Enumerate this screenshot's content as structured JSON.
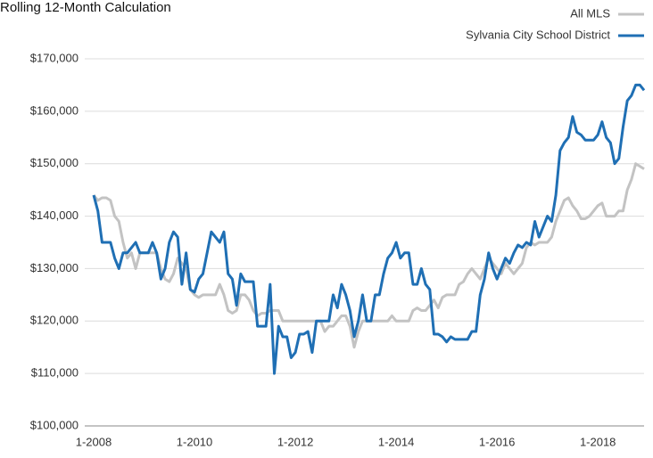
{
  "chart_data": {
    "type": "line",
    "title": "Rolling 12-Month Calculation",
    "categories": [
      "1-2008",
      null,
      null,
      null,
      null,
      null,
      null,
      null,
      null,
      null,
      null,
      null,
      null,
      null,
      null,
      null,
      null,
      null,
      null,
      null,
      null,
      null,
      null,
      null,
      "1-2010",
      null,
      null,
      null,
      null,
      null,
      null,
      null,
      null,
      null,
      null,
      null,
      null,
      null,
      null,
      null,
      null,
      null,
      null,
      null,
      null,
      null,
      null,
      null,
      "1-2012",
      null,
      null,
      null,
      null,
      null,
      null,
      null,
      null,
      null,
      null,
      null,
      null,
      null,
      null,
      null,
      null,
      null,
      null,
      null,
      null,
      null,
      null,
      null,
      "1-2014",
      null,
      null,
      null,
      null,
      null,
      null,
      null,
      null,
      null,
      null,
      null,
      null,
      null,
      null,
      null,
      null,
      null,
      null,
      null,
      null,
      null,
      null,
      null,
      "1-2016",
      null,
      null,
      null,
      null,
      null,
      null,
      null,
      null,
      null,
      null,
      null,
      null,
      null,
      null,
      null,
      null,
      null,
      null,
      null,
      null,
      null,
      null,
      null,
      "1-2018",
      null,
      null,
      null,
      null,
      null,
      null,
      null,
      null,
      null,
      null,
      null
    ],
    "series": [
      {
        "name": "All MLS",
        "color": "#c3c3c3",
        "values": [
          144000,
          143000,
          143500,
          143500,
          143000,
          140000,
          139000,
          135000,
          132000,
          133000,
          130000,
          133000,
          133000,
          133000,
          133000,
          133000,
          130000,
          128000,
          127500,
          129000,
          132000,
          131000,
          130000,
          126000,
          125000,
          124500,
          125000,
          125000,
          125000,
          125000,
          127000,
          125000,
          122000,
          121500,
          122000,
          125000,
          125000,
          124000,
          122000,
          121000,
          121500,
          121500,
          122000,
          122000,
          122000,
          120000,
          120000,
          120000,
          120000,
          120000,
          120000,
          120000,
          120000,
          120000,
          120000,
          118000,
          119000,
          119000,
          120000,
          121000,
          121000,
          119000,
          115000,
          118000,
          120000,
          120000,
          120000,
          120000,
          120000,
          120000,
          120000,
          121000,
          120000,
          120000,
          120000,
          120000,
          122000,
          122500,
          122000,
          122000,
          123000,
          124000,
          122500,
          124500,
          125000,
          125000,
          125000,
          127000,
          127500,
          129000,
          130000,
          129000,
          128000,
          130000,
          132000,
          131000,
          130000,
          129000,
          131000,
          130000,
          129000,
          130000,
          131000,
          134000,
          135000,
          134500,
          135000,
          135000,
          135000,
          136000,
          139000,
          141000,
          143000,
          143500,
          142000,
          141000,
          139500,
          139500,
          140000,
          141000,
          142000,
          142500,
          140000,
          140000,
          140000,
          141000,
          141000,
          145000,
          147000,
          150000,
          149500,
          149000
        ]
      },
      {
        "name": "Sylvania City School District",
        "color": "#1f6fb4",
        "values": [
          144000,
          141000,
          135000,
          135000,
          135000,
          132000,
          130000,
          133000,
          133000,
          134000,
          135000,
          133000,
          133000,
          133000,
          135000,
          133000,
          128000,
          130000,
          135000,
          137000,
          136000,
          127000,
          133000,
          126000,
          125500,
          128000,
          129000,
          133000,
          137000,
          136000,
          135000,
          137000,
          129000,
          128000,
          123000,
          129000,
          127500,
          127500,
          127500,
          119000,
          119000,
          119000,
          127000,
          110000,
          119000,
          117000,
          117000,
          113000,
          114000,
          117500,
          117500,
          118000,
          114000,
          120000,
          120000,
          120000,
          120000,
          125000,
          122500,
          127000,
          125000,
          122000,
          117000,
          120000,
          125000,
          120000,
          120000,
          125000,
          125000,
          129000,
          132000,
          133000,
          135000,
          132000,
          133000,
          133000,
          127000,
          127000,
          130000,
          127000,
          126000,
          117500,
          117500,
          117000,
          116000,
          117000,
          116500,
          116500,
          116500,
          116500,
          118000,
          118000,
          125000,
          128000,
          133000,
          130000,
          128000,
          130000,
          132000,
          131000,
          133000,
          134500,
          134000,
          135000,
          134500,
          139000,
          136000,
          138000,
          140000,
          139000,
          144000,
          152500,
          154000,
          155000,
          159000,
          156000,
          155500,
          154500,
          154500,
          154500,
          155500,
          158000,
          155000,
          154000,
          150000,
          151000,
          157000,
          162000,
          163000,
          165000,
          165000,
          164000
        ]
      }
    ],
    "ylim": [
      100000,
      170000
    ],
    "yticks": [
      {
        "value": 100000,
        "label": "$100,000"
      },
      {
        "value": 110000,
        "label": "$110,000"
      },
      {
        "value": 120000,
        "label": "$120,000"
      },
      {
        "value": 130000,
        "label": "$130,000"
      },
      {
        "value": 140000,
        "label": "$140,000"
      },
      {
        "value": 150000,
        "label": "$150,000"
      },
      {
        "value": 160000,
        "label": "$160,000"
      },
      {
        "value": 170000,
        "label": "$170,000"
      }
    ],
    "grid": true,
    "legend": "top-right"
  }
}
